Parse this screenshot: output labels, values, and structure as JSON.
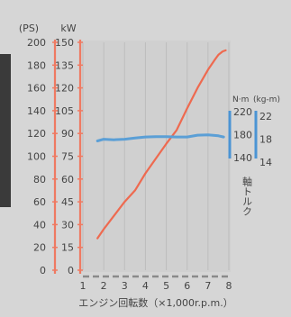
{
  "chart_data": {
    "type": "line",
    "xlabel": "エンジン回転数（×1,000r.p.m.）",
    "xticks": [
      1,
      2,
      3,
      4,
      5,
      6,
      7,
      8
    ],
    "xlim": [
      1,
      8
    ],
    "left_axes": [
      {
        "unit": "(PS)",
        "ticks": [
          0,
          20,
          40,
          60,
          80,
          100,
          120,
          140,
          160,
          180,
          200
        ],
        "ylim": [
          0,
          200
        ]
      },
      {
        "unit": "kW",
        "ticks": [
          0,
          15,
          30,
          45,
          60,
          75,
          90,
          105,
          120,
          135,
          150
        ],
        "ylim": [
          0,
          150
        ]
      }
    ],
    "right_axes": [
      {
        "unit": "N·m",
        "ticks": [
          140,
          180,
          220
        ],
        "ylim": [
          140,
          220
        ]
      },
      {
        "unit": "(kg-m)",
        "ticks": [
          14,
          18,
          22
        ],
        "ylim": [
          14,
          22
        ]
      }
    ],
    "right_axis_title": "軸トルク",
    "series": [
      {
        "name": "",
        "axis": "PS",
        "color": "#ee6a50",
        "x": [
          1.7,
          2.0,
          2.5,
          3.0,
          3.5,
          4.0,
          4.5,
          5.0,
          5.5,
          6.0,
          6.5,
          7.0,
          7.3,
          7.5,
          7.7,
          7.85
        ],
        "y": [
          28,
          36,
          48,
          60,
          70,
          85,
          98,
          111,
          123,
          142,
          160,
          176,
          184,
          189,
          192,
          193
        ]
      },
      {
        "name": "",
        "axis": "Nm",
        "color": "#5b9fd6",
        "x": [
          1.7,
          2.0,
          2.5,
          3.0,
          3.5,
          4.0,
          4.5,
          5.0,
          5.5,
          6.0,
          6.5,
          7.0,
          7.5,
          7.75
        ],
        "y": [
          169,
          172,
          171,
          172,
          174,
          176,
          176.5,
          176.5,
          176,
          176,
          179,
          179.5,
          178,
          176
        ]
      }
    ]
  }
}
